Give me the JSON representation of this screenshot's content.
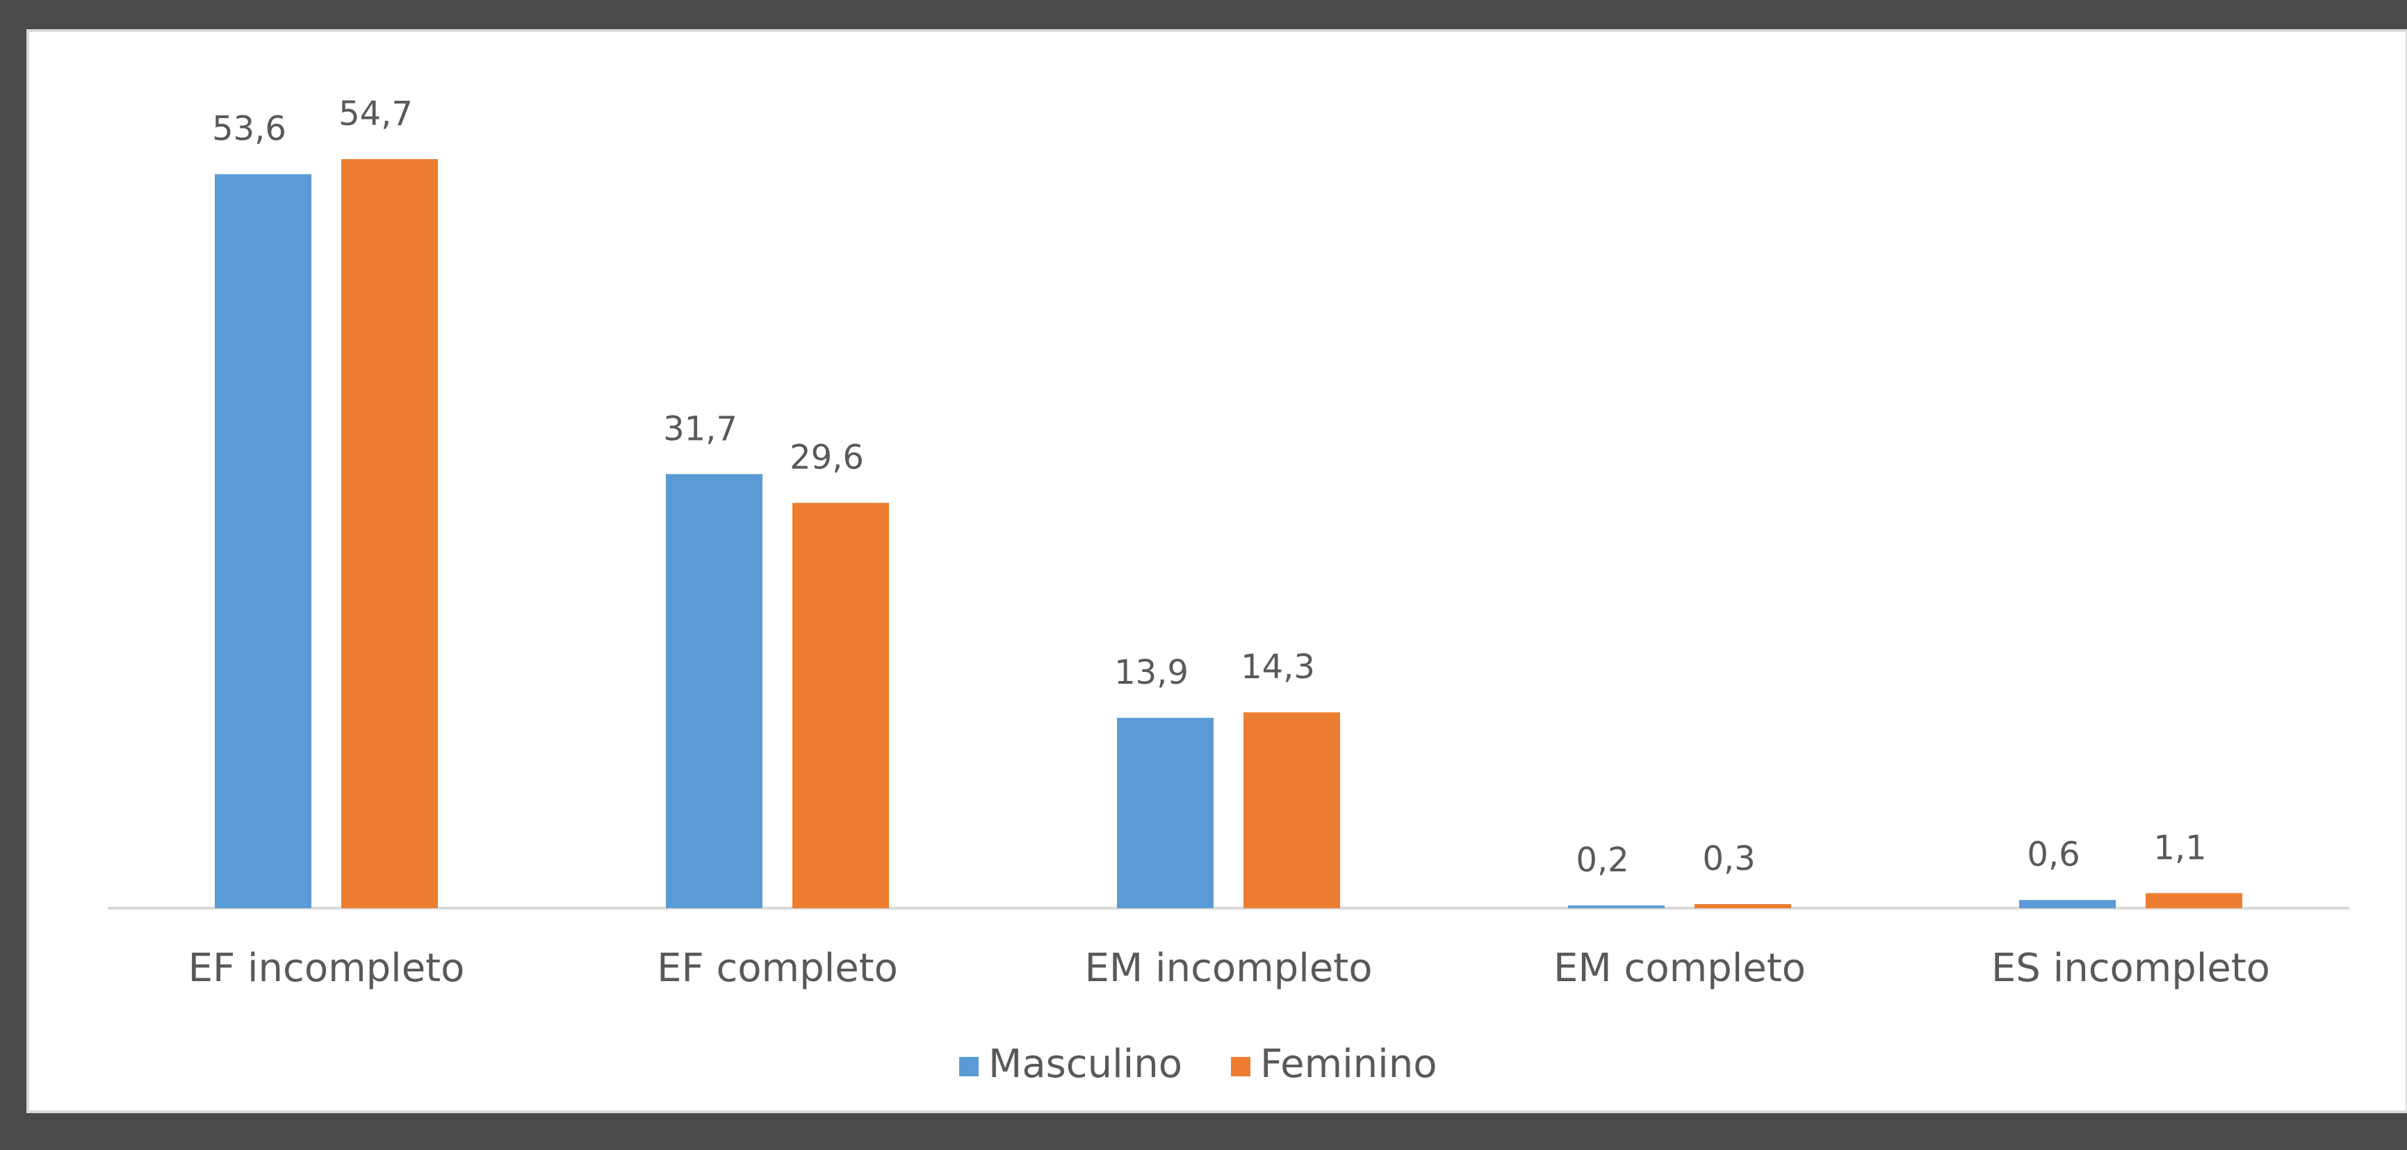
{
  "chart_data": {
    "type": "bar",
    "categories": [
      "EF incompleto",
      "EF completo",
      "EM incompleto",
      "EM completo",
      "ES incompleto"
    ],
    "series": [
      {
        "name": "Masculino",
        "color": "#5b9bd5",
        "values": [
          53.6,
          31.7,
          13.9,
          0.2,
          0.6
        ],
        "value_labels": [
          "53,6",
          "31,7",
          "13,9",
          "0,2",
          "0,6"
        ]
      },
      {
        "name": "Feminino",
        "color": "#ed7d31",
        "values": [
          54.7,
          29.6,
          14.3,
          0.3,
          1.1
        ],
        "value_labels": [
          "54,7",
          "29,6",
          "14,3",
          "0,3",
          "1,1"
        ]
      }
    ],
    "legend": "bottom"
  }
}
